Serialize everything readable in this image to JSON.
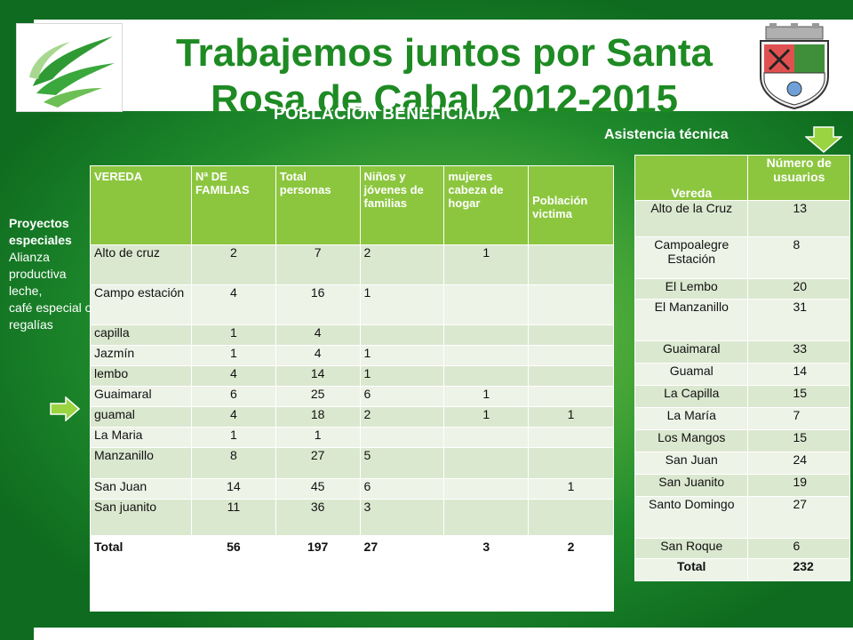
{
  "title": "Trabajemos juntos por Santa Rosa de Cabal 2012-2015",
  "subtitle": "POBLACIÓN BENEFICIADA",
  "asistencia_label": "Asistencia técnica",
  "proyectos": {
    "heading": "Proyectos especiales",
    "lines": [
      "Alianza productiva leche,",
      " café especial o regalías"
    ]
  },
  "table_left": {
    "headers": [
      "VEREDA",
      "Nª DE FAMILIAS",
      "Total personas",
      "Niños y jóvenes de familias",
      "mujeres cabeza de hogar",
      "Población victima"
    ],
    "rows": [
      [
        "Alto de cruz",
        "2",
        "7",
        "2",
        "1",
        ""
      ],
      [
        "Campo estación",
        "4",
        "16",
        "1",
        "",
        ""
      ],
      [
        "capilla",
        "1",
        "4",
        "",
        "",
        ""
      ],
      [
        "Jazmín",
        "1",
        "4",
        "1",
        "",
        ""
      ],
      [
        "lembo",
        "4",
        "14",
        "1",
        "",
        ""
      ],
      [
        "Guaimaral",
        "6",
        "25",
        "6",
        "1",
        ""
      ],
      [
        "guamal",
        "4",
        "18",
        "2",
        "1",
        "1"
      ],
      [
        "La Maria",
        "1",
        "1",
        "",
        "",
        ""
      ],
      [
        "Manzanillo",
        "8",
        "27",
        "5",
        "",
        ""
      ],
      [
        "San Juan",
        "14",
        "45",
        "6",
        "",
        "1"
      ],
      [
        "San juanito",
        "11",
        "36",
        "3",
        "",
        ""
      ]
    ],
    "total": [
      "Total",
      "56",
      "197",
      "27",
      "3",
      "2"
    ]
  },
  "table_right": {
    "headers": [
      "Vereda",
      "Número de usuarios"
    ],
    "rows": [
      [
        "Alto de la Cruz",
        "13"
      ],
      [
        "Campoalegre Estación",
        "8"
      ],
      [
        "El Lembo",
        "20"
      ],
      [
        "El Manzanillo",
        "31"
      ],
      [
        "Guaimaral",
        "33"
      ],
      [
        "Guamal",
        "14"
      ],
      [
        "La Capilla",
        "15"
      ],
      [
        "La María",
        "7"
      ],
      [
        "Los Mangos",
        "15"
      ],
      [
        "San Juan",
        "24"
      ],
      [
        "San Juanito",
        "19"
      ],
      [
        "Santo Domingo",
        "27"
      ],
      [
        "San Roque",
        "6"
      ]
    ],
    "total": [
      "Total",
      "232"
    ]
  },
  "colors": {
    "title_green": "#1e8a23",
    "header_green": "#8cc63f",
    "row_light": "#edf3e7",
    "row_dark": "#dbe8d0"
  }
}
